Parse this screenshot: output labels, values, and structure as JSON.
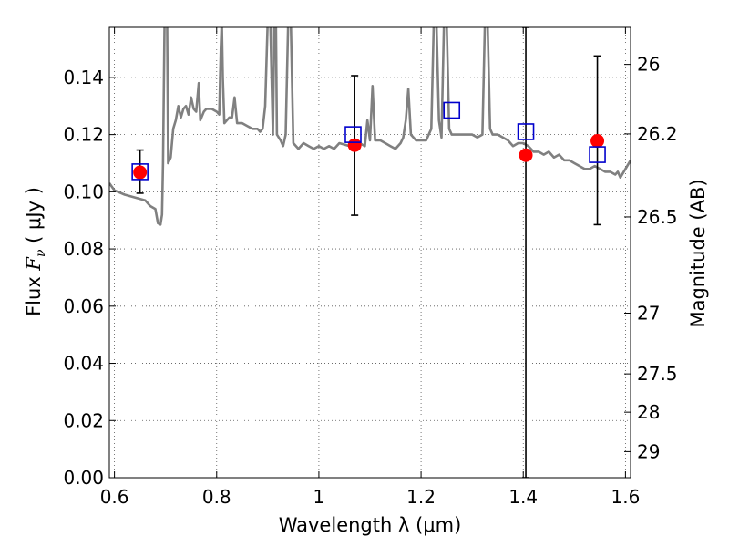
{
  "chart_data": {
    "type": "scatter",
    "xlabel": "Wavelength  λ (μm)",
    "ylabel_prefix": "Flux  ",
    "ylabel_symbol": "F",
    "ylabel_subscript": "ν",
    "ylabel_suffix": "  ( μJy )",
    "y2label": "Magnitude (AB)",
    "xlim": [
      0.59,
      1.61
    ],
    "ylim": [
      0.0,
      0.1575
    ],
    "grid": true,
    "legend": "none",
    "x_ticks": [
      0.6,
      0.8,
      1.0,
      1.2,
      1.4,
      1.6
    ],
    "x_tick_labels": [
      "0.6",
      "0.8",
      "1",
      "1.2",
      "1.4",
      "1.6"
    ],
    "y_ticks": [
      0.0,
      0.02,
      0.04,
      0.06,
      0.08,
      0.1,
      0.12,
      0.14
    ],
    "y_tick_labels": [
      "0.00",
      "0.02",
      "0.04",
      "0.06",
      "0.08",
      "0.10",
      "0.12",
      "0.14"
    ],
    "right_axis_ticks": [
      {
        "mag": 26,
        "label": "26"
      },
      {
        "mag": 26.2,
        "label": "26.2"
      },
      {
        "mag": 26.5,
        "label": "26.5"
      },
      {
        "mag": 27,
        "label": "27"
      },
      {
        "mag": 27.5,
        "label": "27.5"
      },
      {
        "mag": 28,
        "label": "28"
      },
      {
        "mag": 29,
        "label": "29"
      }
    ],
    "colors": {
      "spectrum": "#808080",
      "model": "#0000cc",
      "observed": "#ff0000",
      "errorbar": "#000000",
      "grid": "#555555"
    },
    "spectrum": [
      [
        0.59,
        0.103
      ],
      [
        0.6,
        0.1005
      ],
      [
        0.62,
        0.099
      ],
      [
        0.64,
        0.098
      ],
      [
        0.66,
        0.097
      ],
      [
        0.67,
        0.095
      ],
      [
        0.68,
        0.094
      ],
      [
        0.685,
        0.089
      ],
      [
        0.69,
        0.0885
      ],
      [
        0.693,
        0.092
      ],
      [
        0.695,
        0.11
      ],
      [
        0.698,
        0.16
      ],
      [
        0.7,
        0.16
      ],
      [
        0.703,
        0.16
      ],
      [
        0.705,
        0.11
      ],
      [
        0.71,
        0.112
      ],
      [
        0.715,
        0.122
      ],
      [
        0.72,
        0.125
      ],
      [
        0.725,
        0.13
      ],
      [
        0.73,
        0.126
      ],
      [
        0.735,
        0.129
      ],
      [
        0.74,
        0.13
      ],
      [
        0.745,
        0.127
      ],
      [
        0.75,
        0.133
      ],
      [
        0.755,
        0.129
      ],
      [
        0.76,
        0.128
      ],
      [
        0.765,
        0.138
      ],
      [
        0.768,
        0.125
      ],
      [
        0.775,
        0.128
      ],
      [
        0.78,
        0.129
      ],
      [
        0.79,
        0.129
      ],
      [
        0.8,
        0.128
      ],
      [
        0.805,
        0.127
      ],
      [
        0.808,
        0.15
      ],
      [
        0.81,
        0.16
      ],
      [
        0.812,
        0.14
      ],
      [
        0.815,
        0.124
      ],
      [
        0.82,
        0.125
      ],
      [
        0.825,
        0.126
      ],
      [
        0.83,
        0.126
      ],
      [
        0.835,
        0.133
      ],
      [
        0.84,
        0.124
      ],
      [
        0.85,
        0.124
      ],
      [
        0.86,
        0.123
      ],
      [
        0.87,
        0.122
      ],
      [
        0.88,
        0.122
      ],
      [
        0.885,
        0.121
      ],
      [
        0.89,
        0.122
      ],
      [
        0.895,
        0.13
      ],
      [
        0.9,
        0.16
      ],
      [
        0.905,
        0.16
      ],
      [
        0.91,
        0.12
      ],
      [
        0.913,
        0.16
      ],
      [
        0.916,
        0.16
      ],
      [
        0.918,
        0.12
      ],
      [
        0.925,
        0.118
      ],
      [
        0.93,
        0.116
      ],
      [
        0.935,
        0.12
      ],
      [
        0.94,
        0.16
      ],
      [
        0.945,
        0.16
      ],
      [
        0.95,
        0.117
      ],
      [
        0.96,
        0.115
      ],
      [
        0.97,
        0.117
      ],
      [
        0.98,
        0.116
      ],
      [
        0.99,
        0.115
      ],
      [
        1.0,
        0.116
      ],
      [
        1.01,
        0.115
      ],
      [
        1.02,
        0.116
      ],
      [
        1.03,
        0.115
      ],
      [
        1.04,
        0.117
      ],
      [
        1.06,
        0.116
      ],
      [
        1.08,
        0.117
      ],
      [
        1.09,
        0.116
      ],
      [
        1.095,
        0.125
      ],
      [
        1.1,
        0.118
      ],
      [
        1.105,
        0.137
      ],
      [
        1.11,
        0.118
      ],
      [
        1.12,
        0.118
      ],
      [
        1.13,
        0.117
      ],
      [
        1.14,
        0.116
      ],
      [
        1.15,
        0.115
      ],
      [
        1.16,
        0.117
      ],
      [
        1.165,
        0.119
      ],
      [
        1.17,
        0.125
      ],
      [
        1.175,
        0.136
      ],
      [
        1.18,
        0.12
      ],
      [
        1.19,
        0.118
      ],
      [
        1.2,
        0.118
      ],
      [
        1.21,
        0.118
      ],
      [
        1.22,
        0.122
      ],
      [
        1.225,
        0.16
      ],
      [
        1.23,
        0.16
      ],
      [
        1.235,
        0.125
      ],
      [
        1.24,
        0.119
      ],
      [
        1.245,
        0.16
      ],
      [
        1.25,
        0.16
      ],
      [
        1.255,
        0.122
      ],
      [
        1.26,
        0.12
      ],
      [
        1.27,
        0.12
      ],
      [
        1.28,
        0.12
      ],
      [
        1.3,
        0.12
      ],
      [
        1.31,
        0.119
      ],
      [
        1.32,
        0.12
      ],
      [
        1.325,
        0.16
      ],
      [
        1.33,
        0.16
      ],
      [
        1.335,
        0.122
      ],
      [
        1.34,
        0.12
      ],
      [
        1.35,
        0.12
      ],
      [
        1.36,
        0.119
      ],
      [
        1.37,
        0.118
      ],
      [
        1.38,
        0.116
      ],
      [
        1.39,
        0.117
      ],
      [
        1.4,
        0.117
      ],
      [
        1.41,
        0.116
      ],
      [
        1.42,
        0.114
      ],
      [
        1.43,
        0.114
      ],
      [
        1.44,
        0.113
      ],
      [
        1.45,
        0.114
      ],
      [
        1.46,
        0.112
      ],
      [
        1.47,
        0.113
      ],
      [
        1.48,
        0.111
      ],
      [
        1.49,
        0.111
      ],
      [
        1.5,
        0.11
      ],
      [
        1.51,
        0.109
      ],
      [
        1.52,
        0.108
      ],
      [
        1.53,
        0.108
      ],
      [
        1.54,
        0.109
      ],
      [
        1.55,
        0.108
      ],
      [
        1.56,
        0.107
      ],
      [
        1.57,
        0.107
      ],
      [
        1.58,
        0.106
      ],
      [
        1.585,
        0.107
      ],
      [
        1.59,
        0.105
      ],
      [
        1.6,
        0.108
      ],
      [
        1.61,
        0.111
      ]
    ],
    "model_points": [
      {
        "x": 0.65,
        "y": 0.107
      },
      {
        "x": 1.067,
        "y": 0.12
      },
      {
        "x": 1.26,
        "y": 0.1285
      },
      {
        "x": 1.405,
        "y": 0.121
      },
      {
        "x": 1.545,
        "y": 0.113
      }
    ],
    "observed_points": [
      {
        "x": 0.65,
        "y": 0.1068,
        "err_low": 0.0995,
        "err_high": 0.1146
      },
      {
        "x": 1.07,
        "y": 0.1163,
        "err_low": 0.0918,
        "err_high": 0.1406
      },
      {
        "x": 1.405,
        "y": 0.1128,
        "err_low": 0.0,
        "err_high": 0.1575
      },
      {
        "x": 1.545,
        "y": 0.1178,
        "err_low": 0.0885,
        "err_high": 0.1475
      }
    ]
  }
}
